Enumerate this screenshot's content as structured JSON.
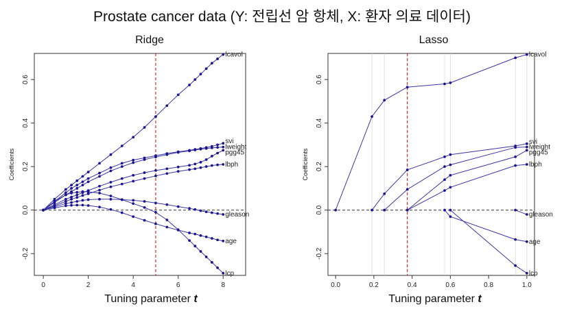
{
  "title": "Prostate cancer data (Y: 전립선 암 항체, X: 환자 의료 데이터)",
  "xlabel_text": "Tuning parameter",
  "xlabel_symbol": "t",
  "colors": {
    "line": "#3b34a8",
    "point": "#1a1690",
    "cutoff": "#d42a2a",
    "zero": "#333333"
  },
  "chart_data": [
    {
      "type": "line",
      "title": "Ridge",
      "xlabel": "Tuning parameter t",
      "ylabel": "Coefficients",
      "xlim": [
        -0.4,
        9
      ],
      "ylim": [
        -0.3,
        0.72
      ],
      "xticks": [
        0,
        2,
        4,
        6,
        8
      ],
      "yticks": [
        -0.2,
        0.0,
        0.2,
        0.4,
        0.6
      ],
      "ytick_labels": [
        "-0.2",
        "0.0",
        "0.2",
        "0.4",
        "0.6"
      ],
      "xtick_labels": [
        "0",
        "2",
        "4",
        "6",
        "8"
      ],
      "cutoff": 5.0,
      "x": [
        0,
        0.5,
        1,
        1.25,
        1.5,
        1.75,
        2,
        2.5,
        3,
        3.5,
        4,
        4.5,
        5,
        5.5,
        6,
        6.5,
        6.75,
        7,
        7.25,
        7.5,
        7.75,
        8
      ],
      "series": [
        {
          "name": "lcavol",
          "values": [
            0,
            0.05,
            0.095,
            0.115,
            0.135,
            0.155,
            0.175,
            0.215,
            0.255,
            0.295,
            0.335,
            0.38,
            0.43,
            0.48,
            0.53,
            0.575,
            0.6,
            0.625,
            0.65,
            0.675,
            0.695,
            0.715
          ]
        },
        {
          "name": "svi",
          "values": [
            0,
            0.04,
            0.08,
            0.1,
            0.115,
            0.13,
            0.145,
            0.17,
            0.195,
            0.215,
            0.23,
            0.24,
            0.25,
            0.26,
            0.268,
            0.275,
            0.279,
            0.283,
            0.288,
            0.293,
            0.3,
            0.307
          ]
        },
        {
          "name": "lweight",
          "values": [
            0,
            0.035,
            0.07,
            0.085,
            0.1,
            0.115,
            0.13,
            0.155,
            0.18,
            0.2,
            0.218,
            0.232,
            0.244,
            0.255,
            0.265,
            0.272,
            0.276,
            0.28,
            0.283,
            0.286,
            0.288,
            0.29
          ]
        },
        {
          "name": "pgg45",
          "values": [
            0,
            0.025,
            0.05,
            0.06,
            0.07,
            0.08,
            0.09,
            0.11,
            0.128,
            0.145,
            0.16,
            0.172,
            0.182,
            0.19,
            0.198,
            0.206,
            0.212,
            0.22,
            0.232,
            0.248,
            0.262,
            0.275
          ]
        },
        {
          "name": "lbph",
          "values": [
            0,
            0.02,
            0.04,
            0.05,
            0.058,
            0.067,
            0.075,
            0.092,
            0.107,
            0.12,
            0.133,
            0.145,
            0.157,
            0.168,
            0.178,
            0.186,
            0.19,
            0.195,
            0.2,
            0.205,
            0.208,
            0.21
          ]
        },
        {
          "name": "gleason",
          "values": [
            0,
            0.015,
            0.03,
            0.035,
            0.04,
            0.045,
            0.048,
            0.05,
            0.05,
            0.048,
            0.045,
            0.04,
            0.033,
            0.025,
            0.016,
            0.008,
            0.003,
            -0.003,
            -0.008,
            -0.012,
            -0.016,
            -0.02
          ]
        },
        {
          "name": "age",
          "values": [
            0,
            0.01,
            0.02,
            0.022,
            0.023,
            0.023,
            0.021,
            0.014,
            0.003,
            -0.012,
            -0.03,
            -0.047,
            -0.063,
            -0.078,
            -0.092,
            -0.105,
            -0.11,
            -0.117,
            -0.123,
            -0.13,
            -0.137,
            -0.142
          ]
        },
        {
          "name": "lcp",
          "values": [
            0,
            0.04,
            0.07,
            0.078,
            0.082,
            0.085,
            0.084,
            0.078,
            0.065,
            0.048,
            0.03,
            0.012,
            -0.01,
            -0.045,
            -0.09,
            -0.14,
            -0.165,
            -0.19,
            -0.215,
            -0.24,
            -0.265,
            -0.29
          ]
        }
      ]
    },
    {
      "type": "line",
      "title": "Lasso",
      "xlabel": "Tuning parameter t",
      "ylabel": "Coefficients",
      "xlim": [
        -0.04,
        1.04
      ],
      "ylim": [
        -0.3,
        0.72
      ],
      "xticks": [
        0.0,
        0.2,
        0.4,
        0.6,
        0.8,
        1.0
      ],
      "xtick_labels": [
        "0.0",
        "0.2",
        "0.4",
        "0.6",
        "0.8",
        "1.0"
      ],
      "yticks": [
        -0.2,
        0.0,
        0.2,
        0.4,
        0.6
      ],
      "ytick_labels": [
        "-0.2",
        "0.0",
        "0.2",
        "0.4",
        "0.6"
      ],
      "cutoff": 0.375,
      "breakpoints": [
        0.19,
        0.255,
        0.375,
        0.57,
        0.6,
        0.94,
        1.0
      ],
      "series": [
        {
          "name": "lcavol",
          "x": [
            0,
            0.19,
            0.255,
            0.375,
            0.57,
            0.6,
            0.94,
            1.0
          ],
          "values": [
            0,
            0.43,
            0.505,
            0.565,
            0.58,
            0.585,
            0.7,
            0.715
          ]
        },
        {
          "name": "svi",
          "x": [
            0.19,
            0.255,
            0.375,
            0.57,
            0.6,
            0.94,
            1.0
          ],
          "values": [
            0,
            0.075,
            0.185,
            0.245,
            0.255,
            0.295,
            0.305
          ]
        },
        {
          "name": "lweight",
          "x": [
            0.255,
            0.375,
            0.57,
            0.6,
            0.94,
            1.0
          ],
          "values": [
            0,
            0.095,
            0.2,
            0.208,
            0.288,
            0.29
          ]
        },
        {
          "name": "pgg45",
          "x": [
            0.375,
            0.57,
            0.6,
            0.94,
            1.0
          ],
          "values": [
            0,
            0.14,
            0.16,
            0.245,
            0.275
          ]
        },
        {
          "name": "lbph",
          "x": [
            0.375,
            0.57,
            0.6,
            0.94,
            1.0
          ],
          "values": [
            0,
            0.09,
            0.105,
            0.205,
            0.21
          ]
        },
        {
          "name": "gleason",
          "x": [
            0.94,
            1.0
          ],
          "values": [
            0,
            -0.02
          ]
        },
        {
          "name": "age",
          "x": [
            0.57,
            0.6,
            0.94,
            1.0
          ],
          "values": [
            0,
            -0.03,
            -0.135,
            -0.145
          ]
        },
        {
          "name": "lcp",
          "x": [
            0.6,
            0.94,
            1.0
          ],
          "values": [
            0,
            -0.255,
            -0.29
          ]
        }
      ]
    }
  ]
}
